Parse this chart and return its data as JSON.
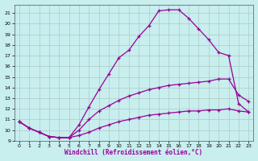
{
  "xlabel": "Windchill (Refroidissement éolien,°C)",
  "bg_color": "#c8eeee",
  "line_color": "#990099",
  "grid_color": "#b0c8c8",
  "xlim": [
    -0.5,
    23.5
  ],
  "ylim": [
    9,
    21.8
  ],
  "xticks": [
    0,
    1,
    2,
    3,
    4,
    5,
    6,
    7,
    8,
    9,
    10,
    11,
    12,
    13,
    14,
    15,
    16,
    17,
    18,
    19,
    20,
    21,
    22,
    23
  ],
  "yticks": [
    9,
    10,
    11,
    12,
    13,
    14,
    15,
    16,
    17,
    18,
    19,
    20,
    21
  ],
  "curves": [
    {
      "x": [
        0,
        1,
        2,
        3,
        4,
        5,
        6,
        7,
        8,
        9,
        10,
        11,
        12,
        13,
        14,
        15,
        16,
        17,
        18,
        19,
        20,
        21,
        22,
        23
      ],
      "y": [
        10.8,
        10.2,
        9.8,
        9.4,
        9.3,
        9.3,
        9.5,
        9.8,
        10.2,
        10.5,
        10.8,
        11.0,
        11.2,
        11.4,
        11.5,
        11.6,
        11.7,
        11.8,
        11.8,
        11.9,
        11.9,
        12.0,
        11.8,
        11.7
      ]
    },
    {
      "x": [
        0,
        1,
        2,
        3,
        4,
        5,
        6,
        7,
        8,
        9,
        10,
        11,
        12,
        13,
        14,
        15,
        16,
        17,
        18,
        19,
        20,
        21,
        22,
        23
      ],
      "y": [
        10.8,
        10.2,
        9.8,
        9.4,
        9.3,
        9.3,
        10.0,
        11.0,
        11.8,
        12.3,
        12.8,
        13.2,
        13.5,
        13.8,
        14.0,
        14.2,
        14.3,
        14.4,
        14.5,
        14.6,
        14.8,
        14.8,
        13.3,
        12.7
      ]
    },
    {
      "x": [
        0,
        1,
        2,
        3,
        4,
        5,
        6,
        7,
        8,
        9,
        10,
        11,
        12,
        13,
        14,
        15,
        16,
        17,
        18,
        19,
        20,
        21,
        22,
        23
      ],
      "y": [
        10.8,
        10.2,
        9.8,
        9.4,
        9.3,
        9.3,
        10.5,
        12.2,
        13.8,
        15.3,
        16.8,
        17.5,
        18.8,
        19.8,
        21.2,
        21.3,
        21.3,
        20.5,
        19.5,
        18.5,
        17.3,
        17.0,
        12.5,
        11.7
      ]
    }
  ]
}
